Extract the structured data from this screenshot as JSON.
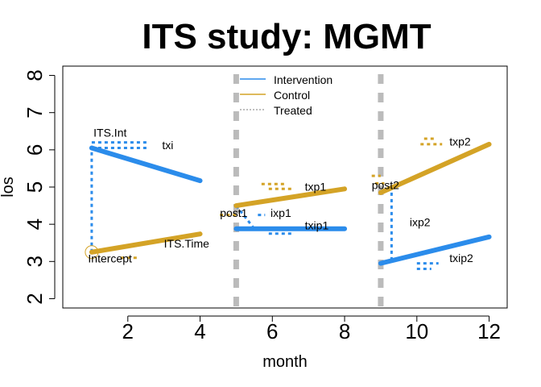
{
  "chart_data": {
    "type": "line",
    "title": "ITS study: MGMT",
    "xlabel": "month",
    "ylabel": "los",
    "xlim": [
      0.2,
      12.5
    ],
    "ylim": [
      1.75,
      8.25
    ],
    "x_ticks": [
      2,
      4,
      6,
      8,
      10,
      12
    ],
    "y_ticks": [
      2,
      3,
      4,
      5,
      6,
      7,
      8
    ],
    "grid": false,
    "legend": {
      "placement": "top-center",
      "entries": [
        {
          "name": "Intervention",
          "color": "#2B8CEB",
          "style": "solid"
        },
        {
          "name": "Control",
          "color": "#D4A326",
          "style": "solid"
        },
        {
          "name": "Treated",
          "color": "#AAAAAA",
          "style": "dotted"
        }
      ]
    },
    "treatment_lines": [
      5,
      9
    ],
    "series": [
      {
        "name": "Intervention",
        "color": "#2B8CEB",
        "segments": [
          {
            "x": [
              1,
              4
            ],
            "y": [
              6.05,
              5.17
            ]
          },
          {
            "x": [
              5,
              8
            ],
            "y": [
              3.88,
              3.88
            ]
          },
          {
            "x": [
              9,
              12
            ],
            "y": [
              2.95,
              3.66
            ]
          }
        ]
      },
      {
        "name": "Control",
        "color": "#D4A326",
        "segments": [
          {
            "x": [
              1,
              4
            ],
            "y": [
              3.25,
              3.74
            ]
          },
          {
            "x": [
              5,
              8
            ],
            "y": [
              4.5,
              4.95
            ]
          },
          {
            "x": [
              9,
              12
            ],
            "y": [
              4.85,
              6.15
            ]
          }
        ]
      }
    ],
    "annotations": [
      {
        "text": "ITS.Int",
        "x": 1.05,
        "y": 6.35
      },
      {
        "text": "txi",
        "x": 2.95,
        "y": 6.02
      },
      {
        "text": "Intercept",
        "x": 0.9,
        "y": 2.97
      },
      {
        "text": "ITS.Time",
        "x": 3.0,
        "y": 3.37
      },
      {
        "text": "post1",
        "x": 4.55,
        "y": 4.2
      },
      {
        "text": "ixp1",
        "x": 5.95,
        "y": 4.2
      },
      {
        "text": "txp1",
        "x": 6.9,
        "y": 4.9
      },
      {
        "text": "txip1",
        "x": 6.9,
        "y": 3.86
      },
      {
        "text": "post2",
        "x": 8.75,
        "y": 4.95
      },
      {
        "text": "ixp2",
        "x": 9.8,
        "y": 3.95
      },
      {
        "text": "txp2",
        "x": 10.9,
        "y": 6.12
      },
      {
        "text": "txip2",
        "x": 10.9,
        "y": 2.99
      }
    ]
  }
}
